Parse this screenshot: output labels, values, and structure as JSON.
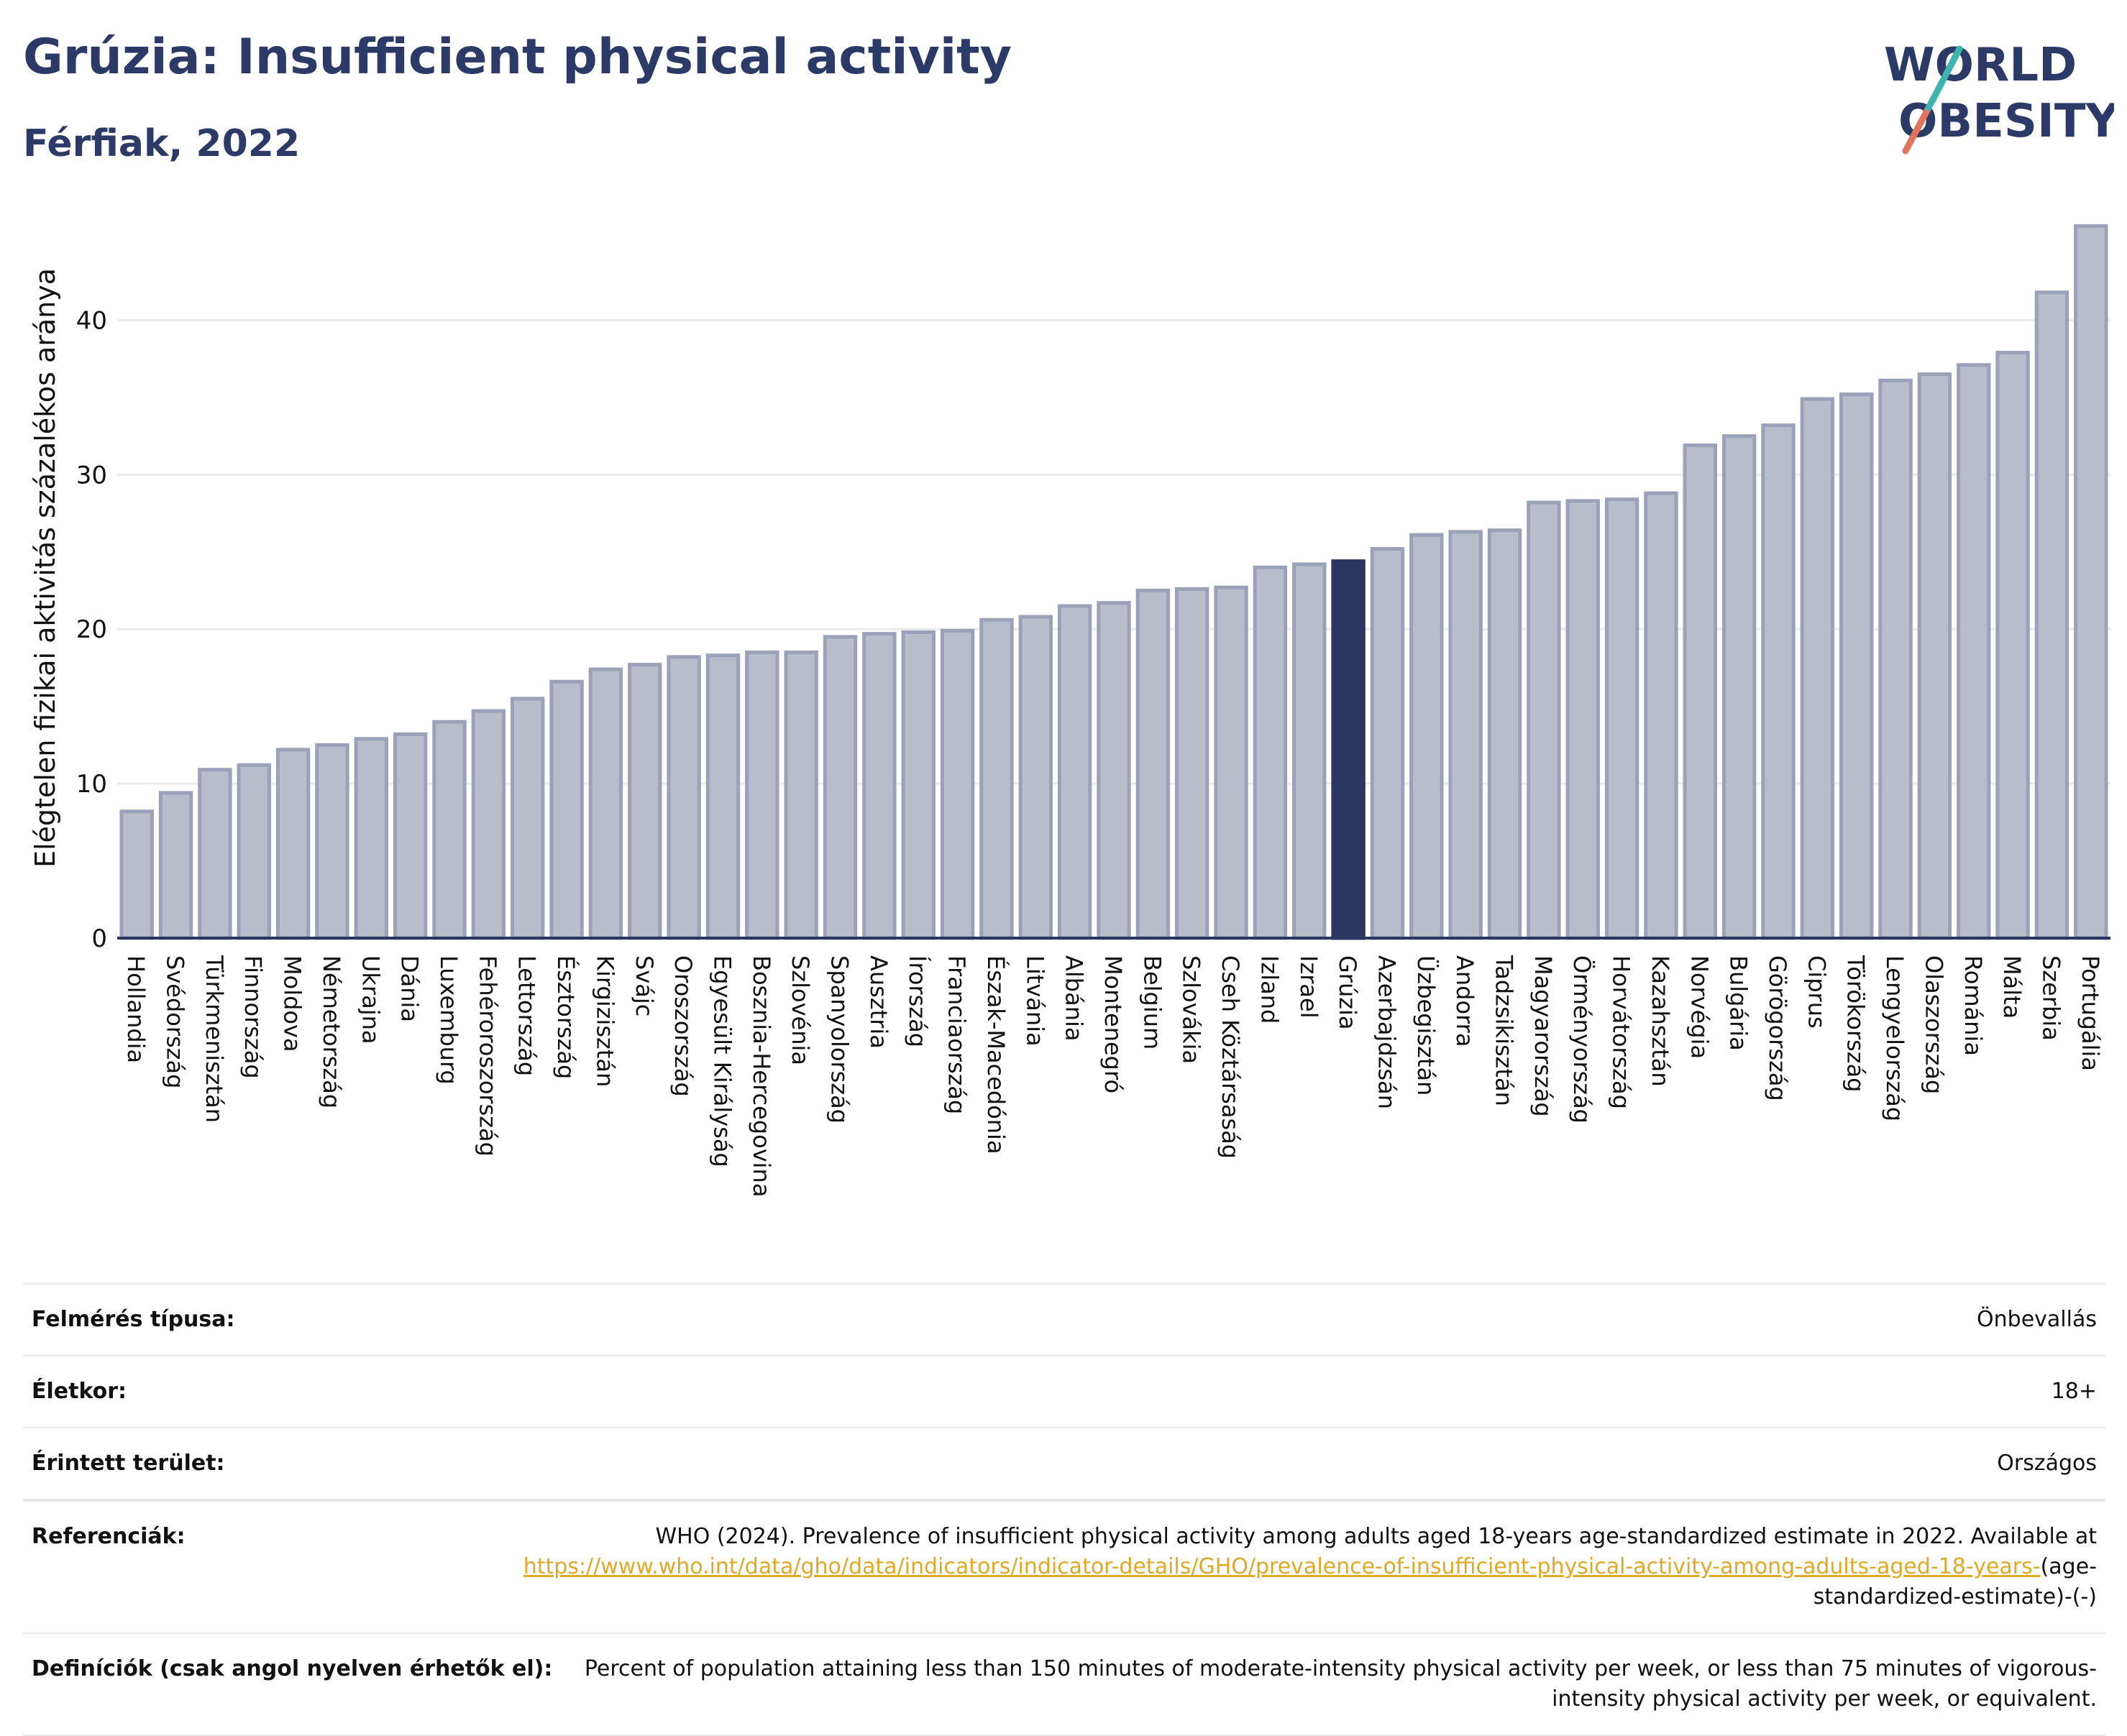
{
  "header": {
    "title": "Grúzia: Insufficient physical activity",
    "subtitle": "Férfiak, 2022"
  },
  "logo": {
    "line1": "WORLD",
    "line2": "OBESITY"
  },
  "chart_data": {
    "type": "bar",
    "title": "Grúzia: Insufficient physical activity",
    "subtitle": "Férfiak, 2022",
    "ylabel": "Elégtelen fizikai aktivitás százalékos aránya",
    "xlabel": "",
    "ylim": [
      0,
      47
    ],
    "yticks": [
      0,
      10,
      20,
      30,
      40
    ],
    "grid": true,
    "highlight": "Grúzia",
    "colors": {
      "bar": "#b8bdcc",
      "bar_edge": "#9aa1b8",
      "highlight": "#2b3660",
      "grid": "#e9e9e9"
    },
    "categories": [
      "Hollandia",
      "Svédország",
      "Türkmenisztán",
      "Finnország",
      "Moldova",
      "Németország",
      "Ukrajna",
      "Dánia",
      "Luxemburg",
      "Fehéroroszország",
      "Lettország",
      "Észtország",
      "Kirgizisztán",
      "Svájc",
      "Oroszország",
      "Egyesült Királyság",
      "Bosznia-Hercegovina",
      "Szlovénia",
      "Spanyolország",
      "Ausztria",
      "Írország",
      "Franciaország",
      "Észak-Macedónia",
      "Litvánia",
      "Albánia",
      "Montenegró",
      "Belgium",
      "Szlovákia",
      "Cseh Köztársaság",
      "Izland",
      "Izrael",
      "Grúzia",
      "Azerbajdzsán",
      "Üzbegisztán",
      "Andorra",
      "Tadzsikisztán",
      "Magyarország",
      "Örményország",
      "Horvátország",
      "Kazahsztán",
      "Norvégia",
      "Bulgária",
      "Görögország",
      "Ciprus",
      "Törökország",
      "Lengyelország",
      "Olaszország",
      "Románia",
      "Málta",
      "Szerbia",
      "Portugália"
    ],
    "values": [
      8.2,
      9.4,
      10.9,
      11.2,
      12.2,
      12.5,
      12.9,
      13.2,
      14.0,
      14.7,
      15.5,
      16.6,
      17.4,
      17.7,
      18.2,
      18.3,
      18.5,
      18.5,
      19.5,
      19.7,
      19.8,
      19.9,
      20.6,
      20.8,
      21.5,
      21.7,
      22.5,
      22.6,
      22.7,
      24.0,
      24.2,
      24.4,
      25.2,
      26.1,
      26.3,
      26.4,
      28.2,
      28.3,
      28.4,
      28.8,
      31.9,
      32.5,
      33.2,
      34.9,
      35.2,
      36.1,
      36.5,
      37.1,
      37.9,
      41.8,
      46.1
    ]
  },
  "meta": {
    "rows": [
      {
        "key": "Felmérés típusa:",
        "value": "Önbevallás"
      },
      {
        "key": "Életkor:",
        "value": "18+"
      },
      {
        "key": "Érintett terület:",
        "value": "Országos"
      }
    ],
    "references_key": "Referenciák:",
    "references_text": "WHO (2024). Prevalence of insufficient physical activity among adults aged 18-years age-standardized estimate in 2022. Available at",
    "references_link": "https://www.who.int/data/gho/data/indicators/indicator-details/GHO/prevalence-of-insufficient-physical-activity-among-adults-aged-18-years-",
    "references_suffix": "(age-standardized-estimate)-(-)",
    "definitions_key": "Definíciók (csak angol nyelven érhetők el):",
    "definitions_value": "Percent of population attaining less than 150 minutes of moderate-intensity physical activity per week, or less than 75 minutes of vigorous-intensity physical activity per week, or equivalent."
  }
}
